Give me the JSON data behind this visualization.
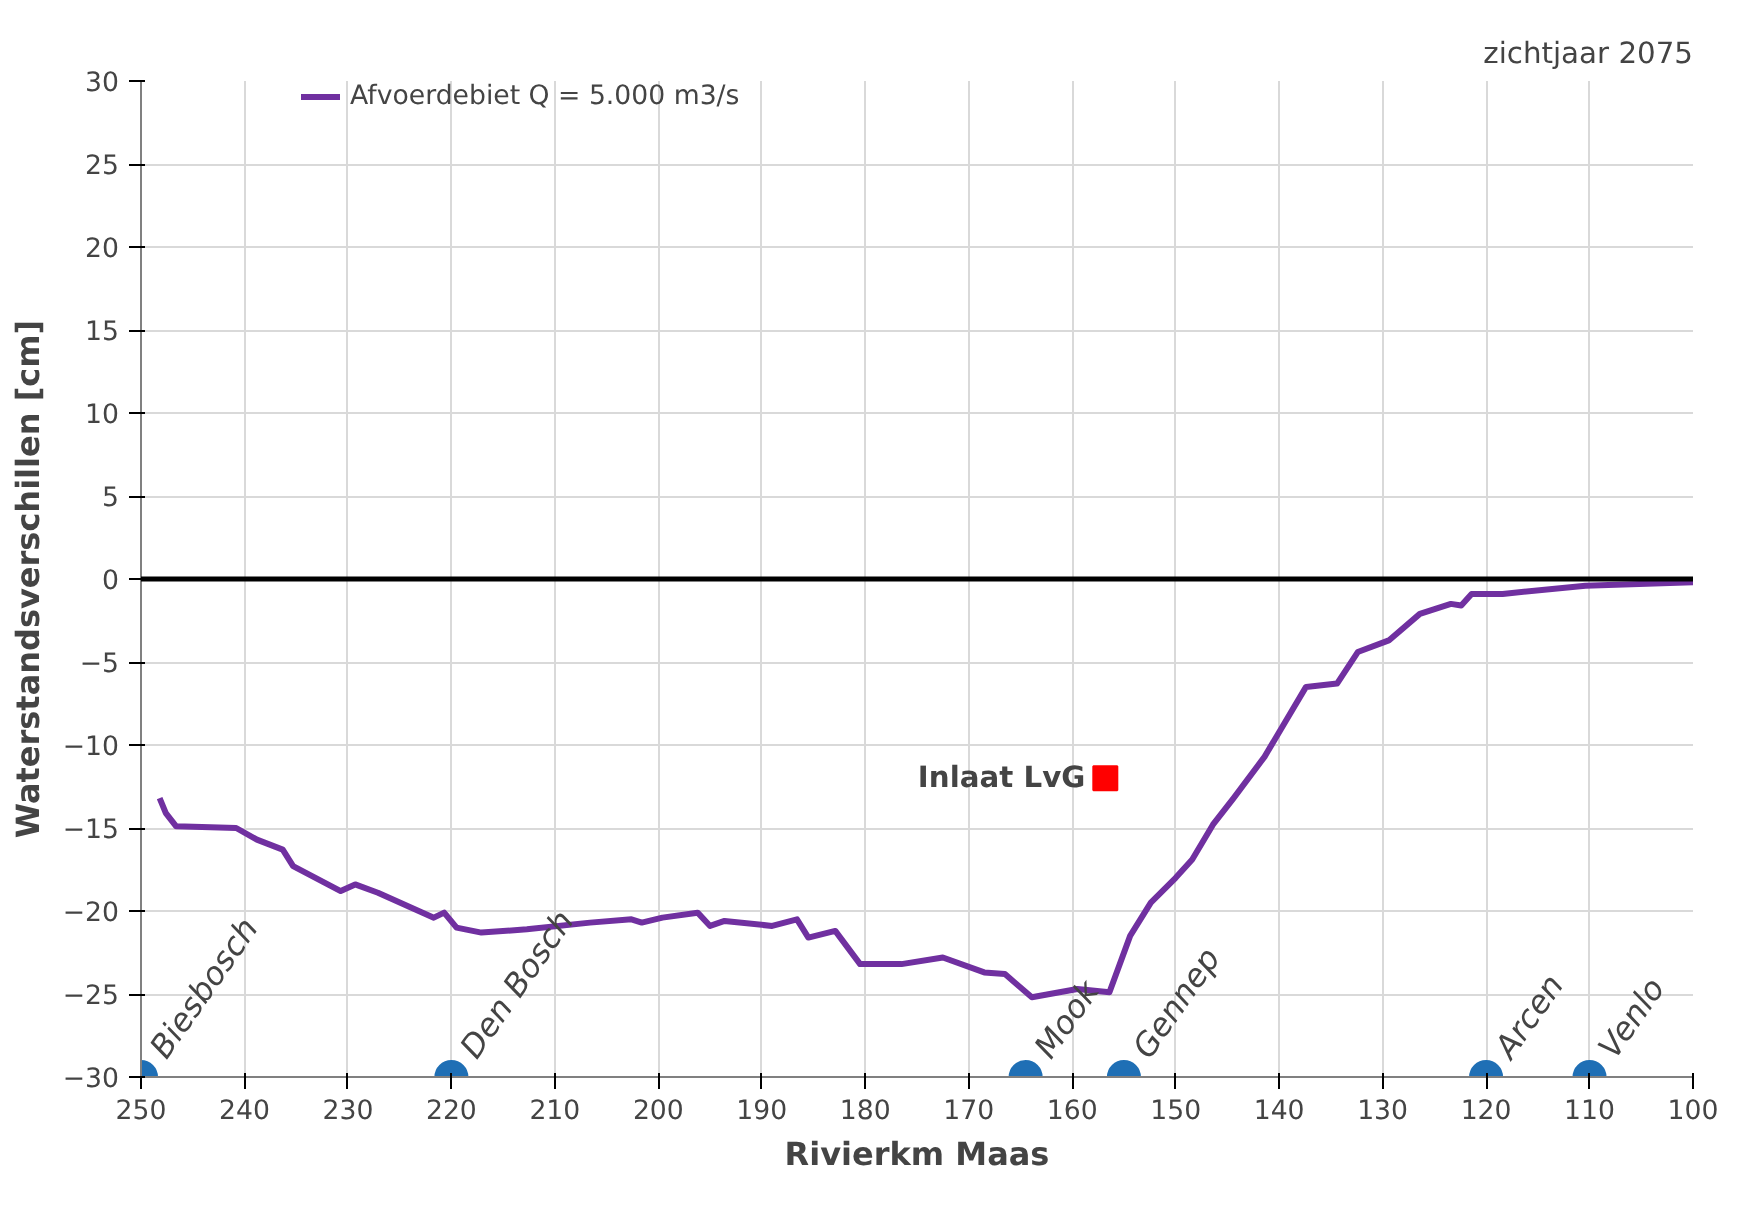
{
  "chart_data": {
    "type": "line",
    "title": "zichtjaar 2075",
    "xlabel": "Rivierkm Maas",
    "ylabel": "Waterstandsverschillen [cm]",
    "xlim": [
      250,
      100
    ],
    "xticks": [
      250,
      240,
      230,
      220,
      210,
      200,
      190,
      180,
      170,
      160,
      150,
      140,
      130,
      120,
      110,
      100
    ],
    "ylim": [
      -30,
      30
    ],
    "yticks": [
      -30,
      -25,
      -20,
      -15,
      -10,
      -5,
      0,
      5,
      10,
      15,
      20,
      25,
      30
    ],
    "grid": true,
    "legend": "top left",
    "line_style": "solid",
    "marker": "none",
    "ref_lines": [
      {
        "axis": "y",
        "value": 0,
        "label": null,
        "color": "#000000"
      }
    ],
    "series": [
      {
        "name": "Afvoerdebiet Q = 5.000 m3/s",
        "color": "#7030a0",
        "x": [
          248.2,
          247.6,
          246.6,
          240.8,
          238.8,
          236.3,
          235.3,
          230.7,
          229.3,
          227.1,
          221.7,
          220.7,
          219.5,
          217.1,
          212.7,
          206.6,
          202.6,
          201.6,
          199.6,
          196.2,
          195.0,
          193.6,
          189.0,
          186.6,
          185.5,
          182.9,
          180.5,
          176.5,
          172.5,
          168.5,
          166.5,
          163.9,
          159.5,
          156.4,
          154.4,
          152.4,
          150.0,
          148.4,
          146.4,
          144.4,
          141.4,
          139.4,
          137.4,
          134.4,
          132.4,
          129.4,
          126.4,
          123.4,
          122.4,
          121.4,
          118.4,
          110.4,
          100
        ],
        "values": [
          -13.2,
          -14.1,
          -14.9,
          -15.0,
          -15.7,
          -16.3,
          -17.3,
          -18.8,
          -18.4,
          -18.9,
          -20.4,
          -20.1,
          -21.0,
          -21.3,
          -21.1,
          -20.7,
          -20.5,
          -20.7,
          -20.4,
          -20.1,
          -20.9,
          -20.6,
          -20.9,
          -20.5,
          -21.6,
          -21.2,
          -23.2,
          -23.2,
          -22.8,
          -23.7,
          -23.8,
          -25.2,
          -24.7,
          -24.9,
          -21.5,
          -19.5,
          -18.0,
          -16.9,
          -14.8,
          -13.2,
          -10.7,
          -8.6,
          -6.5,
          -6.3,
          -4.4,
          -3.7,
          -2.1,
          -1.5,
          -1.6,
          -0.9,
          -0.9,
          -0.4,
          -0.2
        ]
      },
      {
        "name": "Inlaat LvG",
        "type": "scatter",
        "marker": "square",
        "color": "#ff0000",
        "x": [
          156.8
        ],
        "values": [
          -12
        ]
      },
      {
        "type": "scatter",
        "marker": "circle",
        "color": "#1f6fb5",
        "x": [
          250,
          220,
          164.5,
          155,
          120,
          110
        ],
        "values": [
          -30,
          -30,
          -30,
          -30,
          -30,
          -30
        ]
      }
    ],
    "annotations": [
      {
        "text": "Biesbosch",
        "x": 250,
        "y": -30
      },
      {
        "text": "Den Bosch",
        "x": 220,
        "y": -30
      },
      {
        "text": "Mook",
        "x": 164.5,
        "y": -30
      },
      {
        "text": "Gennep",
        "x": 155,
        "y": -30
      },
      {
        "text": "Arcen",
        "x": 120,
        "y": -30
      },
      {
        "text": "Venlo",
        "x": 110,
        "y": -30
      }
    ]
  }
}
